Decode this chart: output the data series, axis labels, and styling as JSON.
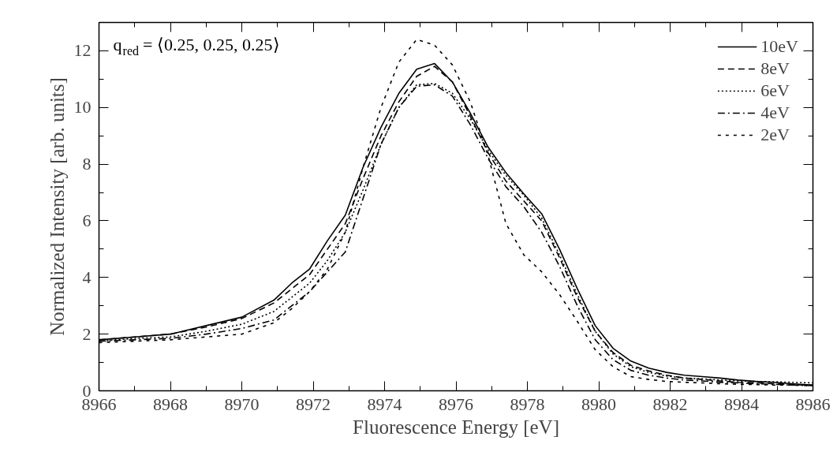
{
  "chart_data": {
    "type": "line",
    "xlabel": "Fluorescence Energy [eV]",
    "ylabel": "Normalized Intensity [arb. units]",
    "annotations": [
      "q⃗$_{red}$= ⟨0.25, 0.25, 0.25⟩"
    ],
    "x": [
      8966,
      8967,
      8968,
      8969,
      8970,
      8970.9,
      8971.4,
      8971.9,
      8972.4,
      8972.9,
      8973.4,
      8973.9,
      8974.4,
      8974.9,
      8975.4,
      8975.9,
      8976.4,
      8976.9,
      8977.4,
      8977.9,
      8978.4,
      8978.9,
      8979.4,
      8979.9,
      8980.4,
      8980.9,
      8981.4,
      8981.9,
      8982.4,
      8982.9,
      8983.4,
      8983.9,
      8984.4,
      8984.9,
      8985.4,
      8986
    ],
    "series": [
      {
        "name": "10eV",
        "color": "#000000",
        "line_style": "solid",
        "values": [
          1.8,
          1.9,
          2.0,
          2.3,
          2.6,
          3.2,
          3.8,
          4.3,
          5.3,
          6.2,
          7.9,
          9.3,
          10.5,
          11.35,
          11.55,
          10.9,
          9.8,
          8.6,
          7.7,
          6.95,
          6.25,
          5.0,
          3.6,
          2.3,
          1.5,
          1.05,
          0.8,
          0.65,
          0.55,
          0.5,
          0.45,
          0.38,
          0.33,
          0.3,
          0.25,
          0.2
        ]
      },
      {
        "name": "8eV",
        "color": "#000000",
        "line_style": "dashed",
        "values": [
          1.8,
          1.9,
          2.0,
          2.25,
          2.55,
          3.1,
          3.6,
          4.1,
          5.0,
          5.9,
          7.5,
          9.0,
          10.2,
          11.1,
          11.45,
          10.9,
          9.7,
          8.4,
          7.4,
          6.7,
          6.0,
          4.7,
          3.3,
          2.1,
          1.35,
          0.9,
          0.7,
          0.55,
          0.45,
          0.4,
          0.35,
          0.3,
          0.28,
          0.25,
          0.22,
          0.2
        ]
      },
      {
        "name": "6eV",
        "color": "#000000",
        "line_style": "dotted",
        "values": [
          1.75,
          1.85,
          1.9,
          2.1,
          2.35,
          2.8,
          3.3,
          3.8,
          4.6,
          5.6,
          7.1,
          8.7,
          10.0,
          10.8,
          10.85,
          10.5,
          9.6,
          8.5,
          7.6,
          6.9,
          6.1,
          4.8,
          3.4,
          2.1,
          1.3,
          0.85,
          0.65,
          0.52,
          0.45,
          0.42,
          0.38,
          0.35,
          0.33,
          0.32,
          0.3,
          0.28
        ]
      },
      {
        "name": "4eV",
        "color": "#000000",
        "line_style": "dashdot",
        "values": [
          1.75,
          1.8,
          1.85,
          2.0,
          2.2,
          2.5,
          3.0,
          3.5,
          4.2,
          4.9,
          6.8,
          8.7,
          10.0,
          10.75,
          10.8,
          10.4,
          9.4,
          8.2,
          7.2,
          6.5,
          5.6,
          4.4,
          3.0,
          1.8,
          1.1,
          0.72,
          0.55,
          0.45,
          0.38,
          0.35,
          0.3,
          0.28,
          0.25,
          0.23,
          0.2,
          0.18
        ]
      },
      {
        "name": "2eV",
        "color": "#000000",
        "line_style": "short dashed",
        "values": [
          1.7,
          1.75,
          1.8,
          1.9,
          2.0,
          2.4,
          2.9,
          3.5,
          4.3,
          5.6,
          7.9,
          10.0,
          11.6,
          12.4,
          12.2,
          11.5,
          10.2,
          8.3,
          5.9,
          4.8,
          4.2,
          3.4,
          2.45,
          1.45,
          0.85,
          0.5,
          0.4,
          0.33,
          0.3,
          0.28,
          0.25,
          0.23,
          0.22,
          0.2,
          0.2,
          0.18
        ]
      }
    ],
    "xlim": [
      8966,
      8986
    ],
    "ylim": [
      0,
      13
    ],
    "xticks": [
      8966,
      8968,
      8970,
      8972,
      8974,
      8976,
      8978,
      8980,
      8982,
      8984,
      8986
    ],
    "yticks": [
      0,
      2,
      4,
      6,
      8,
      10,
      12
    ],
    "grid": false,
    "legend": "top right",
    "marker": "none"
  }
}
